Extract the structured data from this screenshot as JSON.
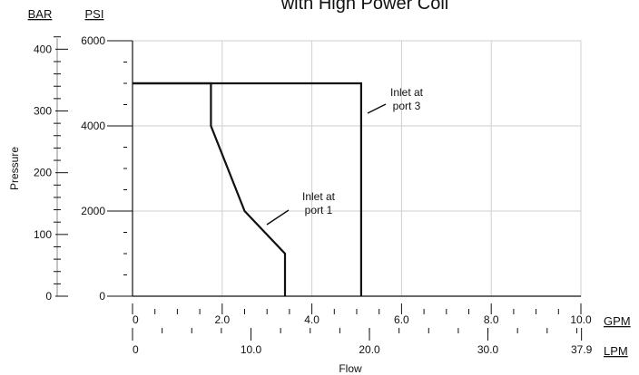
{
  "chart_data": {
    "type": "line",
    "title": "with High Power Coil",
    "xlabel": "Flow",
    "ylabel": "Pressure",
    "axes": {
      "bar": {
        "unit": "BAR",
        "ticks": [
          "400",
          "300",
          "200",
          "100",
          "0"
        ],
        "tick_values": [
          400,
          300,
          200,
          100,
          0
        ]
      },
      "psi": {
        "unit": "PSI",
        "ticks": [
          "6000",
          "4000",
          "2000",
          "0"
        ],
        "tick_values": [
          6000,
          4000,
          2000,
          0
        ],
        "ylim": [
          0,
          6000
        ]
      },
      "gpm": {
        "unit": "GPM",
        "ticks": [
          "0",
          "2.0",
          "4.0",
          "6.0",
          "8.0",
          "10.0"
        ],
        "tick_values": [
          0,
          2,
          4,
          6,
          8,
          10
        ],
        "xlim": [
          0,
          10
        ]
      },
      "lpm": {
        "unit": "LPM",
        "ticks": [
          "0",
          "10.0",
          "20.0",
          "30.0",
          "37.9"
        ],
        "tick_values": [
          0,
          10,
          20,
          30,
          37.9
        ]
      }
    },
    "grid": true,
    "series": [
      {
        "points": [
          [
            0,
            5000
          ],
          [
            1.75,
            5000
          ],
          [
            1.75,
            4000
          ],
          [
            2.5,
            2000
          ],
          [
            3.4,
            1000
          ],
          [
            3.4,
            0
          ]
        ],
        "annotation": "Inlet at\nport 1"
      },
      {
        "points": [
          [
            0,
            5000
          ],
          [
            5.1,
            5000
          ],
          [
            5.1,
            0
          ]
        ],
        "annotation": "Inlet at\nport 3"
      }
    ],
    "line_color": "#111111",
    "grid_color": "#cfcfcf"
  }
}
